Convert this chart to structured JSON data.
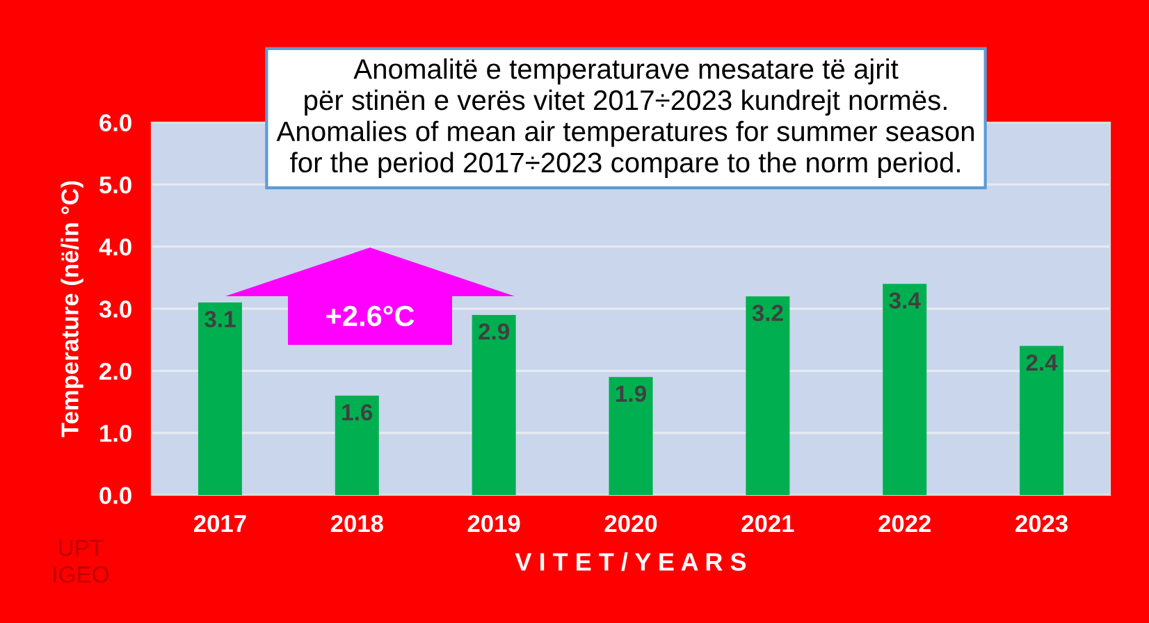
{
  "chart_data": {
    "type": "bar",
    "title": "Anomalitë e temperaturave mesatare të ajrit\npër stinën e verës vitet 2017÷2023 kundrejt normës.\nAnomalies of mean air temperatures for summer season\nfor the period 2017÷2023 compare to the norm period.",
    "xlabel": "V I T E T / Y E A R S",
    "ylabel": "Temperature (në/in °C)",
    "categories": [
      "2017",
      "2018",
      "2019",
      "2020",
      "2021",
      "2022",
      "2023"
    ],
    "values": [
      3.1,
      1.6,
      2.9,
      1.9,
      3.2,
      3.4,
      2.4
    ],
    "color": "#00b050",
    "ylim": [
      0,
      6
    ],
    "yticks": [
      {
        "value": 0,
        "label": "0.0"
      },
      {
        "value": 1,
        "label": "1.0"
      },
      {
        "value": 2,
        "label": "2.0"
      },
      {
        "value": 3,
        "label": "3.0"
      },
      {
        "value": 4,
        "label": "4.0"
      },
      {
        "value": 5,
        "label": "5.0"
      },
      {
        "value": 6,
        "label": "6.0"
      }
    ],
    "grid": "y",
    "data_labels": true,
    "legend": false,
    "annotations": [
      "+2.6°C",
      "UPT\nIGEO"
    ]
  }
}
